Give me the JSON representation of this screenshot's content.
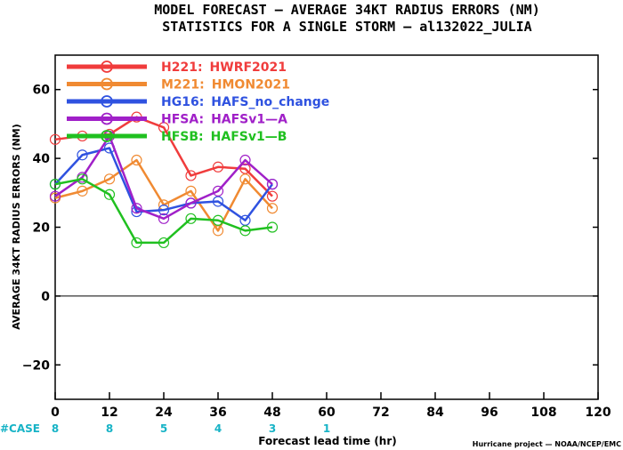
{
  "title_line1": "MODEL FORECAST — AVERAGE 34KT RADIUS ERRORS (NM)",
  "title_line2": "STATISTICS FOR A SINGLE STORM — al132022_JULIA",
  "credit": "Hurricane project — NOAA/NCEP/EMC",
  "case_label": "#CASE",
  "case_color": "#17b3c6",
  "chart_data": {
    "type": "line",
    "xlabel": "Forecast lead time (hr)",
    "ylabel": "AVERAGE 34KT RADIUS ERRORS (NM)",
    "xlim": [
      0,
      120
    ],
    "ylim": [
      -30,
      70
    ],
    "x_ticks": [
      0,
      12,
      24,
      36,
      48,
      60,
      72,
      84,
      96,
      108,
      120
    ],
    "y_ticks": [
      -20,
      0,
      20,
      40,
      60
    ],
    "grid": false,
    "zero_line": true,
    "legend_position": "top-left",
    "case_counts": [
      {
        "x": 0,
        "n": "8"
      },
      {
        "x": 12,
        "n": "8"
      },
      {
        "x": 24,
        "n": "5"
      },
      {
        "x": 36,
        "n": "4"
      },
      {
        "x": 48,
        "n": "3"
      },
      {
        "x": 60,
        "n": "1"
      }
    ],
    "x": [
      0,
      6,
      12,
      18,
      24,
      30,
      36,
      42,
      48
    ],
    "series": [
      {
        "id": "H221",
        "label": "H221:",
        "model": "HWRF2021",
        "color": "#f03c3c",
        "values": [
          45.5,
          46.5,
          47,
          52,
          49,
          35,
          37.5,
          37,
          29
        ]
      },
      {
        "id": "M221",
        "label": "M221:",
        "model": "HMON2021",
        "color": "#f08a32",
        "values": [
          28.5,
          30.5,
          34,
          39.5,
          26.5,
          30.5,
          19,
          34,
          25.5
        ]
      },
      {
        "id": "HG16",
        "label": "HG16:",
        "model": "HAFS_no_change",
        "color": "#2f52e0",
        "values": [
          32.5,
          41,
          43,
          24.5,
          25,
          27,
          27.5,
          22,
          32.5
        ]
      },
      {
        "id": "HFSA",
        "label": "HFSA:",
        "model": "HAFSv1—A",
        "color": "#a020c8",
        "values": [
          29,
          34.5,
          46.5,
          25.5,
          22.5,
          27,
          30.5,
          39.5,
          32.5
        ]
      },
      {
        "id": "HFSB",
        "label": "HFSB:",
        "model": "HAFSv1—B",
        "color": "#20c020",
        "values": [
          32.5,
          34,
          29.5,
          15.5,
          15.5,
          22.5,
          22,
          19,
          20
        ]
      }
    ]
  }
}
